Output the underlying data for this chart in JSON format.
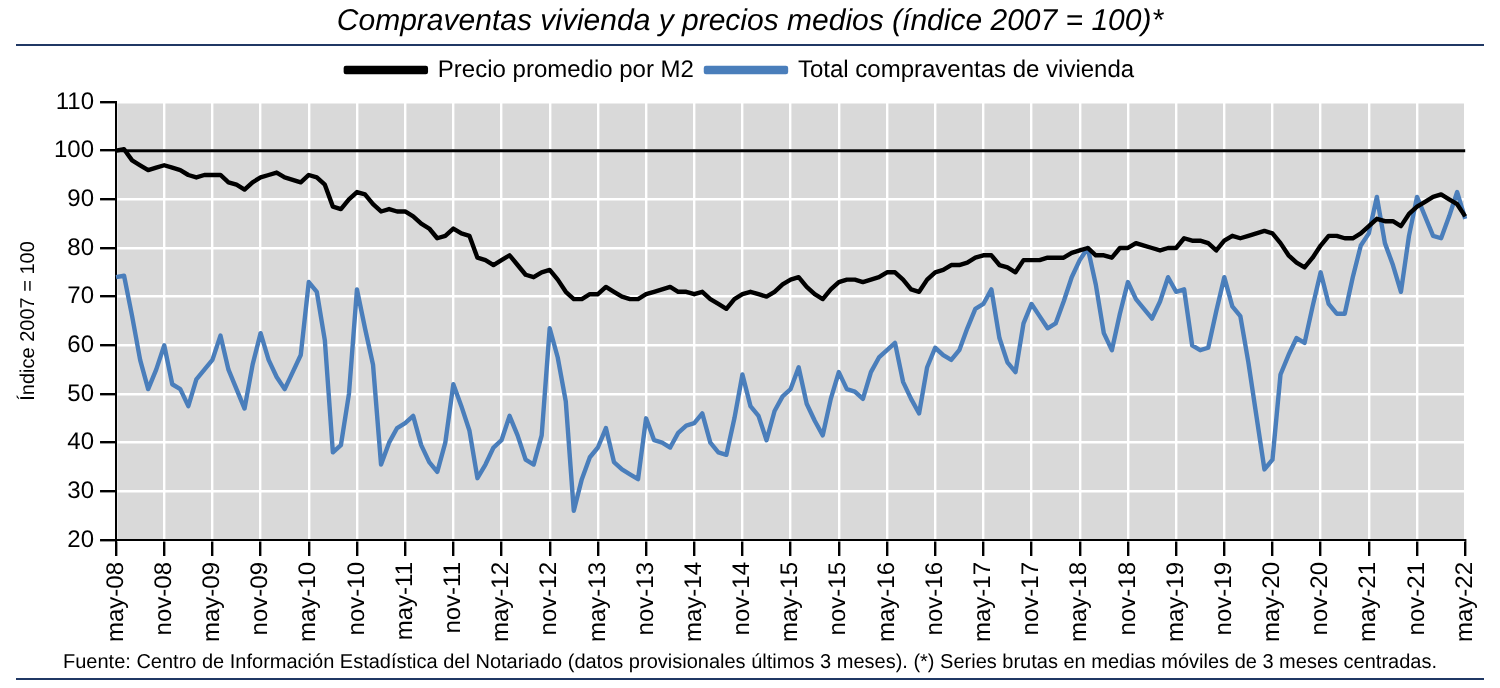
{
  "chart_data": {
    "type": "line",
    "title": "Compraventas vivienda y precios medios (índice 2007 = 100)*",
    "ylabel": "Índice 2007 = 100",
    "annotations": [
      "Fuente: Centro de Información Estadística del Notariado (datos provisionales últimos 3 meses). (*) Series brutas en medias móviles de 3 meses centradas."
    ],
    "categories": [
      "may-08",
      null,
      null,
      null,
      null,
      null,
      "nov-08",
      null,
      null,
      null,
      null,
      null,
      "may-09",
      null,
      null,
      null,
      null,
      null,
      "nov-09",
      null,
      null,
      null,
      null,
      null,
      "may-10",
      null,
      null,
      null,
      null,
      null,
      "nov-10",
      null,
      null,
      null,
      null,
      null,
      "may-11",
      null,
      null,
      null,
      null,
      null,
      "nov-11",
      null,
      null,
      null,
      null,
      null,
      "may-12",
      null,
      null,
      null,
      null,
      null,
      "nov-12",
      null,
      null,
      null,
      null,
      null,
      "may-13",
      null,
      null,
      null,
      null,
      null,
      "nov-13",
      null,
      null,
      null,
      null,
      null,
      "may-14",
      null,
      null,
      null,
      null,
      null,
      "nov-14",
      null,
      null,
      null,
      null,
      null,
      "may-15",
      null,
      null,
      null,
      null,
      null,
      "nov-15",
      null,
      null,
      null,
      null,
      null,
      "may-16",
      null,
      null,
      null,
      null,
      null,
      "nov-16",
      null,
      null,
      null,
      null,
      null,
      "may-17",
      null,
      null,
      null,
      null,
      null,
      "nov-17",
      null,
      null,
      null,
      null,
      null,
      "may-18",
      null,
      null,
      null,
      null,
      null,
      "nov-18",
      null,
      null,
      null,
      null,
      null,
      "may-19",
      null,
      null,
      null,
      null,
      null,
      "nov-19",
      null,
      null,
      null,
      null,
      null,
      "may-20",
      null,
      null,
      null,
      null,
      null,
      "nov-20",
      null,
      null,
      null,
      null,
      null,
      "may-21",
      null,
      null,
      null,
      null,
      null,
      "nov-21",
      null,
      null,
      null,
      null,
      null,
      "may-22"
    ],
    "series": [
      {
        "name": "Precio promedio por M2",
        "color": "#000000",
        "values": [
          100,
          100.3,
          98,
          97,
          96,
          96.5,
          97,
          96.5,
          96,
          95,
          94.5,
          95,
          95,
          95,
          93.5,
          93,
          92,
          93.5,
          94.5,
          95,
          95.5,
          94.5,
          94,
          93.5,
          95,
          94.5,
          93,
          88.5,
          88,
          90,
          91.5,
          91,
          89,
          87.5,
          88,
          87.5,
          87.5,
          86.5,
          85,
          84,
          82,
          82.5,
          84,
          83,
          82.5,
          78,
          77.5,
          76.5,
          77.5,
          78.5,
          76.5,
          74.5,
          74,
          75,
          75.5,
          73.5,
          71,
          69.5,
          69.5,
          70.5,
          70.5,
          72,
          71,
          70,
          69.5,
          69.5,
          70.5,
          71,
          71.5,
          72,
          71,
          71,
          70.5,
          71,
          69.5,
          68.5,
          67.5,
          69.5,
          70.5,
          71,
          70.5,
          70,
          71,
          72.5,
          73.5,
          74,
          72,
          70.5,
          69.5,
          71.5,
          73,
          73.5,
          73.5,
          73,
          73.5,
          74,
          75,
          75,
          73.5,
          71.5,
          71,
          73.5,
          75,
          75.5,
          76.5,
          76.5,
          77,
          78,
          78.5,
          78.5,
          76.5,
          76,
          75,
          77.5,
          77.5,
          77.5,
          78,
          78,
          78,
          79,
          79.5,
          80,
          78.5,
          78.5,
          78,
          80,
          80,
          81,
          80.5,
          80,
          79.5,
          80,
          80,
          82,
          81.5,
          81.5,
          81,
          79.5,
          81.5,
          82.5,
          82,
          82.5,
          83,
          83.5,
          83,
          81,
          78.5,
          77,
          76,
          78,
          80.5,
          82.5,
          82.5,
          82,
          82,
          83,
          84.5,
          86,
          85.5,
          85.5,
          84.5,
          87,
          88.5,
          89.5,
          90.5,
          91,
          90,
          89,
          86.5
        ]
      },
      {
        "name": "Total compraventas de vivienda",
        "color": "#4a7ebb",
        "values": [
          74,
          74.3,
          66,
          57,
          51,
          55,
          60,
          52,
          51,
          47.5,
          53,
          55,
          57,
          62,
          55,
          51,
          47,
          56,
          62.5,
          57,
          53.5,
          51,
          54.5,
          58,
          73,
          71,
          61,
          38,
          39.5,
          50,
          71.5,
          63.5,
          56,
          35.5,
          40,
          43,
          44,
          45.5,
          39.5,
          36,
          34,
          40,
          52,
          47.5,
          42.5,
          32.7,
          35.5,
          39,
          40.5,
          45.5,
          41.5,
          36.5,
          35.5,
          41.5,
          63.5,
          57.5,
          48.5,
          26,
          32.5,
          37,
          39,
          43,
          36,
          34.5,
          33.5,
          32.5,
          45,
          40.5,
          40,
          39,
          42,
          43.5,
          44,
          46,
          40,
          38,
          37.5,
          45,
          54,
          47.5,
          45.5,
          40.5,
          46.5,
          49.5,
          51,
          55.5,
          48,
          44.5,
          41.5,
          49,
          54.5,
          51,
          50.5,
          49,
          54.5,
          57.5,
          59,
          60.5,
          52.5,
          49,
          46,
          55.5,
          59.5,
          58,
          57,
          59,
          63.5,
          67.5,
          68.5,
          71.5,
          61.5,
          56.5,
          54.5,
          64.5,
          68.5,
          66,
          63.5,
          64.5,
          69,
          74,
          77.5,
          80,
          72.5,
          62.5,
          59,
          66.5,
          73,
          69.5,
          67.5,
          65.5,
          69,
          74,
          71,
          71.5,
          60,
          59,
          59.5,
          67,
          74,
          68,
          66,
          56.5,
          45.5,
          34.5,
          36.5,
          54,
          58,
          61.5,
          60.5,
          68,
          75,
          68.5,
          66.5,
          66.5,
          74,
          80.5,
          83,
          90.5,
          81,
          76.5,
          71,
          82.5,
          90.5,
          86.5,
          82.5,
          82,
          86.5,
          91.5,
          86
        ]
      }
    ],
    "ylim": [
      20,
      110
    ],
    "yticks": [
      20,
      30,
      40,
      50,
      60,
      70,
      80,
      90,
      100,
      110
    ],
    "ref_lines": [
      {
        "axis": "y",
        "value": 100,
        "color": "#000000"
      }
    ],
    "grid": true,
    "legend": "top",
    "marker": "none",
    "line_style": "solid"
  }
}
